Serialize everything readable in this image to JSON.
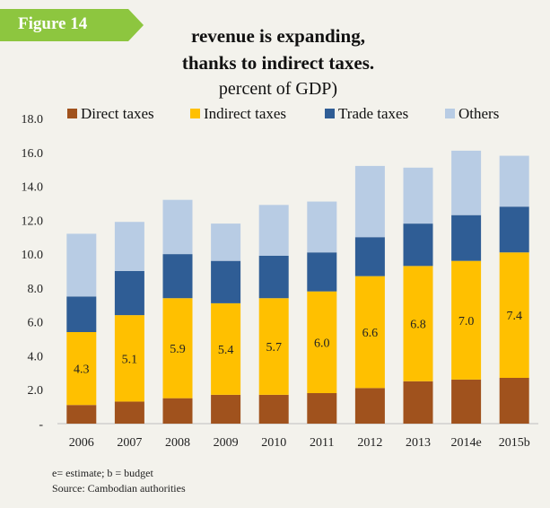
{
  "figure_label": "Figure 14",
  "title_line1": "revenue is expanding,",
  "title_line2": "thanks to indirect taxes.",
  "title_line3": "percent of GDP)",
  "footnote": "e= estimate; b = budget",
  "source": "Source: Cambodian authorities",
  "colors": {
    "badge": "#8dc63f",
    "panel": "#f3f2ec",
    "direct": "#a0521d",
    "indirect": "#ffc000",
    "trade": "#2f5d95",
    "others": "#b8cce4"
  },
  "chart_data": {
    "type": "bar",
    "stacked": true,
    "categories": [
      "2006",
      "2007",
      "2008",
      "2009",
      "2010",
      "2011",
      "2012",
      "2013",
      "2014e",
      "2015b"
    ],
    "series": [
      {
        "name": "Direct taxes",
        "values": [
          1.1,
          1.3,
          1.5,
          1.7,
          1.7,
          1.8,
          2.1,
          2.5,
          2.6,
          2.7
        ]
      },
      {
        "name": "Indirect taxes",
        "values": [
          4.3,
          5.1,
          5.9,
          5.4,
          5.7,
          6.0,
          6.6,
          6.8,
          7.0,
          7.4
        ]
      },
      {
        "name": "Trade taxes",
        "values": [
          2.1,
          2.6,
          2.6,
          2.5,
          2.5,
          2.3,
          2.3,
          2.5,
          2.7,
          2.7
        ]
      },
      {
        "name": "Others",
        "values": [
          3.7,
          2.9,
          3.2,
          2.2,
          3.0,
          3.0,
          4.2,
          3.3,
          3.8,
          3.0
        ]
      }
    ],
    "data_labels_series": "Indirect taxes",
    "ylim": [
      0,
      18
    ],
    "yticks": [
      "-",
      "2.0",
      "4.0",
      "6.0",
      "8.0",
      "10.0",
      "12.0",
      "14.0",
      "16.0",
      "18.0"
    ],
    "legend_position": "top",
    "grid": false
  }
}
